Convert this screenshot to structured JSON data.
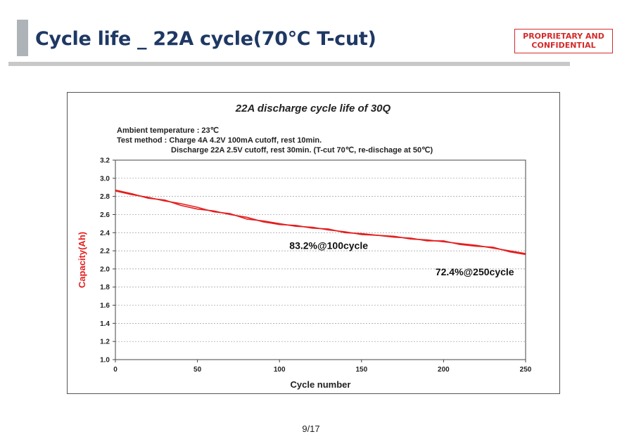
{
  "slide": {
    "title": "Cycle life _ 22A cycle(70℃ T-cut)",
    "confidential_line1": "PROPRIETARY AND",
    "confidential_line2": "CONFIDENTIAL",
    "page_number": "9/17"
  },
  "chart_data": {
    "type": "line",
    "title": "22A discharge cycle life of 30Q",
    "conditions": [
      "Ambient temperature : 23℃",
      "Test method : Charge  4A 4.2V 100mA cutoff, rest 10min.",
      "Discharge  22A 2.5V cutoff, rest 30min. (T-cut 70℃,  re-dischage at 50℃)"
    ],
    "xlabel": "Cycle number",
    "ylabel": "Capacity(Ah)",
    "xlim": [
      0,
      250
    ],
    "ylim": [
      1.0,
      3.2
    ],
    "xticks": [
      0,
      50,
      100,
      150,
      200,
      250
    ],
    "yticks": [
      1.0,
      1.2,
      1.4,
      1.6,
      1.8,
      2.0,
      2.2,
      2.4,
      2.6,
      2.8,
      3.0,
      3.2
    ],
    "grid": "horizontal",
    "series_color": "#e31f1f",
    "series": [
      {
        "x": [
          0,
          10,
          20,
          30,
          40,
          50,
          60,
          70,
          80,
          90,
          100,
          110,
          120,
          130,
          140,
          150,
          160,
          170,
          180,
          190,
          200,
          210,
          220,
          230,
          240,
          250
        ],
        "values": [
          2.86,
          2.82,
          2.79,
          2.75,
          2.72,
          2.68,
          2.63,
          2.61,
          2.55,
          2.53,
          2.5,
          2.47,
          2.46,
          2.43,
          2.41,
          2.38,
          2.37,
          2.36,
          2.33,
          2.32,
          2.3,
          2.28,
          2.26,
          2.23,
          2.2,
          2.17
        ]
      },
      {
        "x": [
          0,
          10,
          20,
          30,
          40,
          50,
          60,
          70,
          80,
          90,
          100,
          110,
          120,
          130,
          140,
          150,
          160,
          170,
          180,
          190,
          200,
          210,
          220,
          230,
          240,
          250
        ],
        "values": [
          2.87,
          2.83,
          2.78,
          2.76,
          2.7,
          2.66,
          2.64,
          2.6,
          2.57,
          2.52,
          2.49,
          2.48,
          2.45,
          2.44,
          2.4,
          2.39,
          2.37,
          2.35,
          2.34,
          2.31,
          2.31,
          2.27,
          2.25,
          2.24,
          2.19,
          2.16
        ]
      }
    ],
    "annotations": [
      {
        "text": "83.2%@100cycle",
        "x": 130,
        "y": 2.22
      },
      {
        "text": "72.4%@250cycle",
        "x": 219,
        "y": 1.93
      }
    ]
  }
}
